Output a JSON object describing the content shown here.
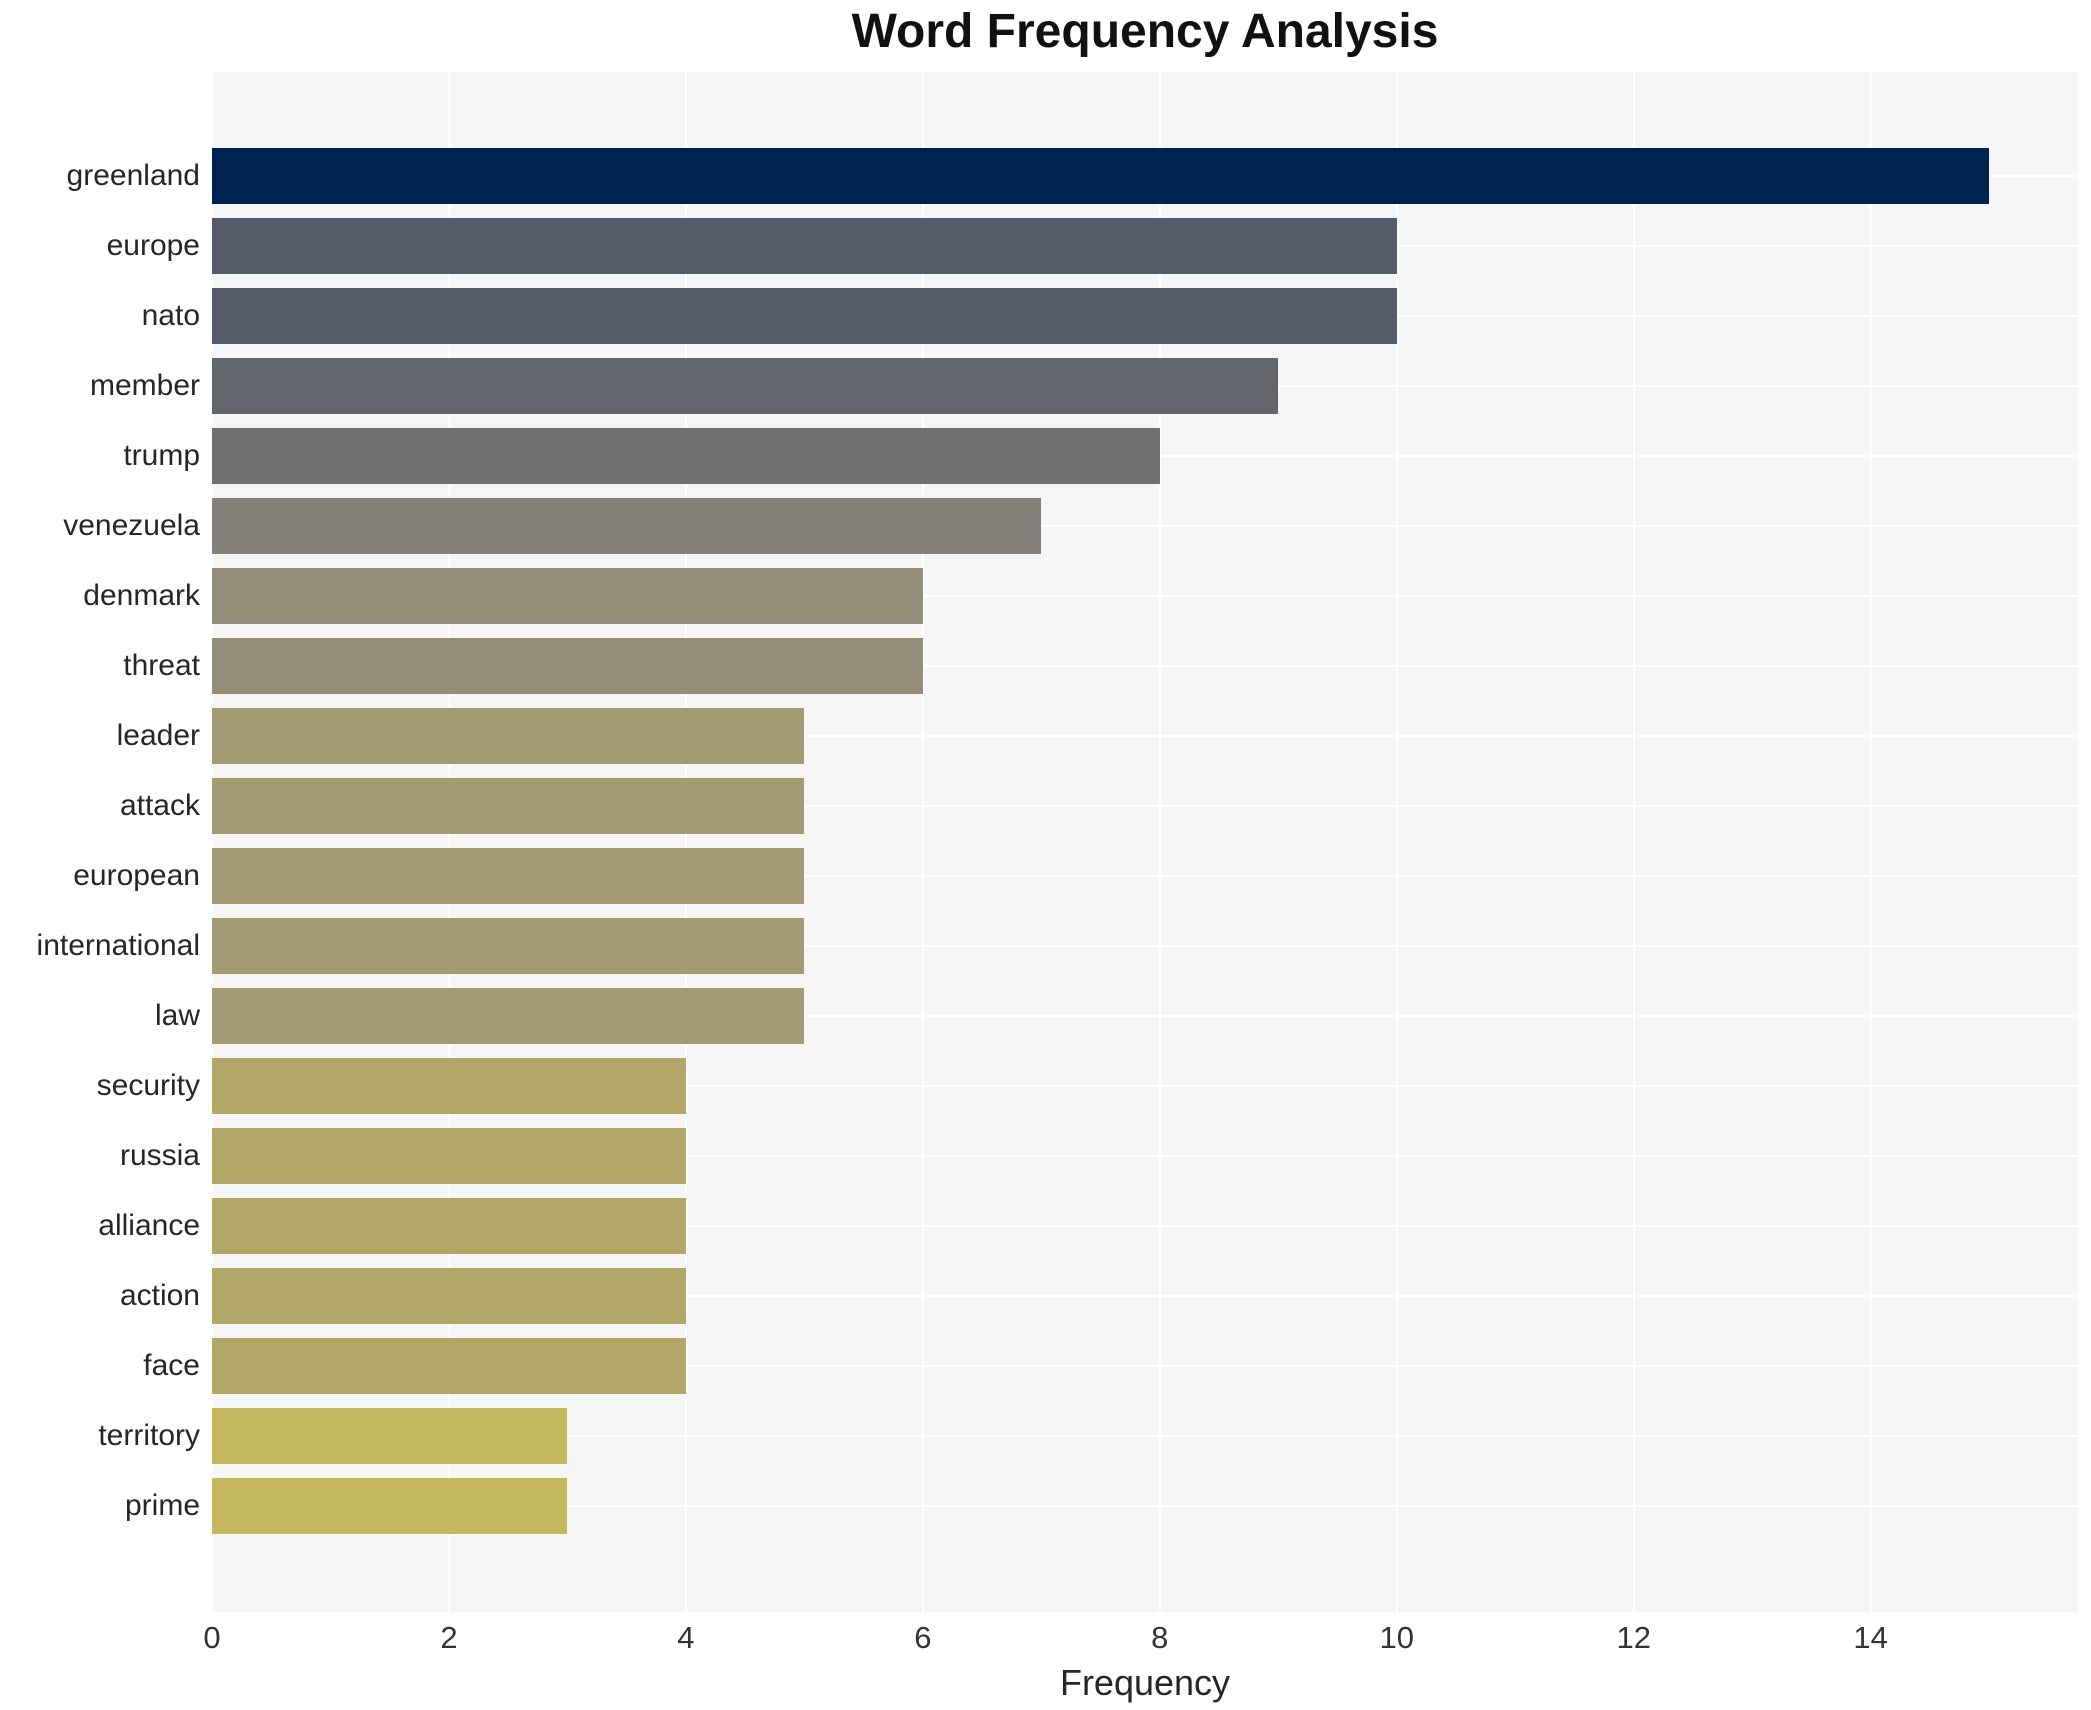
{
  "chart_data": {
    "type": "bar",
    "orientation": "horizontal",
    "title": "Word Frequency Analysis",
    "xlabel": "Frequency",
    "ylabel": "",
    "categories": [
      "greenland",
      "europe",
      "nato",
      "member",
      "trump",
      "venezuela",
      "denmark",
      "threat",
      "leader",
      "attack",
      "european",
      "international",
      "law",
      "security",
      "russia",
      "alliance",
      "action",
      "face",
      "territory",
      "prime"
    ],
    "values": [
      15,
      10,
      10,
      9,
      8,
      7,
      6,
      6,
      5,
      5,
      5,
      5,
      5,
      4,
      4,
      4,
      4,
      4,
      3,
      3
    ],
    "bar_colors": [
      "#012350",
      "#565b6c",
      "#565b6c",
      "#64666e",
      "#6f7072",
      "#84817a",
      "#938d78",
      "#938d78",
      "#a49c73",
      "#a49c73",
      "#a49c73",
      "#a49c73",
      "#a49c73",
      "#b2a768",
      "#b2a768",
      "#b2a768",
      "#b2a768",
      "#b2a768",
      "#c6b85f",
      "#c6b85f"
    ],
    "xlim": [
      0,
      15.75
    ],
    "xticks": [
      0,
      2,
      4,
      6,
      8,
      10,
      12,
      14
    ],
    "grid": "on",
    "legend_position": "none"
  },
  "style": {
    "panel_bg": "#f6f6f7",
    "page_bg": "#ffffff",
    "grid_color": "#ffffff",
    "title_color": "#111111",
    "label_color": "#262626",
    "tick_color": "#333333",
    "accent_dark": "#012350",
    "accent_light": "#c6b85f"
  }
}
